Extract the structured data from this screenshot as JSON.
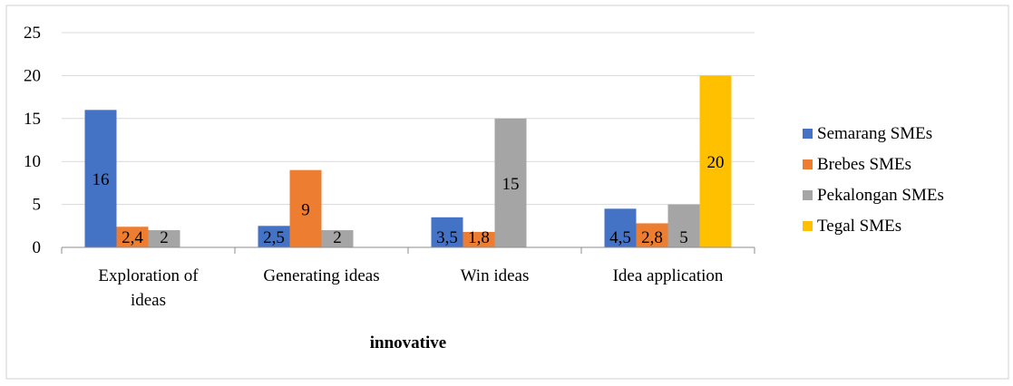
{
  "chart_data": {
    "type": "bar",
    "title": "",
    "xlabel": "innovative",
    "ylabel": "",
    "ylim": [
      0,
      25
    ],
    "yticks": [
      "0",
      "5",
      "10",
      "15",
      "20",
      "25"
    ],
    "grid": true,
    "legend_position": "right",
    "categories": [
      [
        "Exploration of",
        "ideas"
      ],
      [
        "Generating ideas"
      ],
      [
        "Win ideas"
      ],
      [
        "Idea application"
      ]
    ],
    "series": [
      {
        "name": "Semarang SMEs",
        "color": "#4472C4",
        "values": [
          16,
          2.5,
          3.5,
          4.5
        ],
        "labels": [
          "16",
          "2,5",
          "3,5",
          "4,5"
        ]
      },
      {
        "name": "Brebes SMEs",
        "color": "#ED7D31",
        "values": [
          2.4,
          9,
          1.8,
          2.8
        ],
        "labels": [
          "2,4",
          "9",
          "1,8",
          "2,8"
        ]
      },
      {
        "name": "Pekalongan SMEs",
        "color": "#A5A5A5",
        "values": [
          2,
          2,
          15,
          5
        ],
        "labels": [
          "2",
          "2",
          "15",
          "5"
        ]
      },
      {
        "name": "Tegal SMEs",
        "color": "#FFC000",
        "values": [
          null,
          null,
          null,
          20
        ],
        "labels": [
          "",
          "",
          "",
          "20"
        ]
      }
    ]
  }
}
